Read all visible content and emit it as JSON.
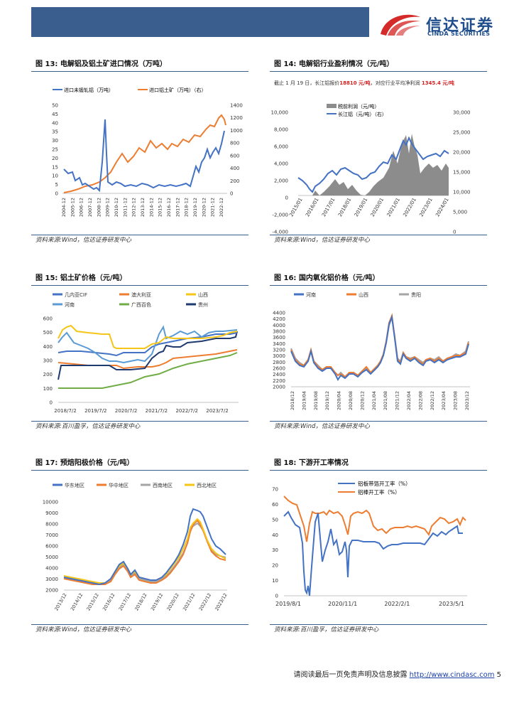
{
  "header": {
    "brand_cn": "信达证券",
    "brand_en": "CINDA SECURITIES",
    "bar_color": "#3a5f8f"
  },
  "figures": {
    "f13": {
      "label": "图 13:",
      "title": "电解铝及铝土矿进口情况（万吨）",
      "source": "资料来源:Wind，信达证券研发中心",
      "chart_data": {
        "type": "line",
        "series": [
          {
            "name": "进口未锻轧铝（万吨）",
            "color": "#4472c4",
            "axis": "left"
          },
          {
            "name": "进口铝土矿（万吨）（右）",
            "color": "#ed7d31",
            "axis": "right"
          }
        ],
        "x_ticks": [
          "2004-12",
          "2005-12",
          "2006-12",
          "2007-12",
          "2008-12",
          "2009-12",
          "2010-12",
          "2011-12",
          "2012-12",
          "2013-12",
          "2014-12",
          "2015-12",
          "2016-12",
          "2017-12",
          "2018-12",
          "2019-12",
          "2020-12",
          "2021-12",
          "2022-12"
        ],
        "y_left": [
          0,
          5,
          10,
          15,
          20,
          25,
          30,
          35,
          40,
          45,
          50
        ],
        "y_right": [
          0,
          200,
          400,
          600,
          800,
          1000,
          1200,
          1400
        ]
      }
    },
    "f14": {
      "label": "图 14:",
      "title": "电解铝行业盈利情况（元/吨）",
      "note_pre": "截止 1 月 19 日，长江铝报价",
      "note_price": "18810 元/吨",
      "note_mid": "，对应行业平均净利润",
      "note_profit": "1345.4 元/吨",
      "source": "资料来源:Wind，信达证券研发中心",
      "chart_data": {
        "type": "area+line",
        "series": [
          {
            "name": "税前利润（元/吨）",
            "color": "#8c8c8c",
            "axis": "left"
          },
          {
            "name": "长江铝（元/吨）（右）",
            "color": "#4472c4",
            "axis": "right"
          }
        ],
        "x_ticks": [
          "2015/01",
          "2016/01",
          "2017/01",
          "2018/01",
          "2019/01",
          "2020/01",
          "2021/01",
          "2022/01",
          "2023/01",
          "2024/01"
        ],
        "y_left": [
          "10,000",
          "8,000",
          "6,000",
          "4,000",
          "2,000",
          "0",
          "-2,000",
          "-4,000"
        ],
        "y_right": [
          "30,000",
          "25,000",
          "20,000",
          "15,000",
          "10,000",
          "5,000",
          "0"
        ]
      }
    },
    "f15": {
      "label": "图 15:",
      "title": "铝土矿价格（元/吨）",
      "source": "资料来源:百川盈孚，信达证券研发中心",
      "chart_data": {
        "type": "line",
        "series": [
          {
            "name": "几内亚CIF",
            "color": "#4472c4"
          },
          {
            "name": "澳大利亚",
            "color": "#ed7d31"
          },
          {
            "name": "山西",
            "color": "#f5c518"
          },
          {
            "name": "河南",
            "color": "#5b9bd5"
          },
          {
            "name": "广西百色",
            "color": "#70ad47"
          },
          {
            "name": "贵州",
            "color": "#1f3a6e"
          }
        ],
        "x_ticks": [
          "2018/7/2",
          "2019/7/2",
          "2020/7/2",
          "2021/7/2",
          "2022/7/2",
          "2023/7/2"
        ],
        "y_ticks": [
          "600",
          "500",
          "400",
          "300",
          "200",
          "100",
          "0"
        ]
      }
    },
    "f16": {
      "label": "图 16:",
      "title": "国内氧化铝价格（元/吨）",
      "source": "资料来源:Wind，信达证券研发中心",
      "chart_data": {
        "type": "line",
        "series": [
          {
            "name": "河南",
            "color": "#4472c4"
          },
          {
            "name": "山西",
            "color": "#ed7d31"
          },
          {
            "name": "贵阳",
            "color": "#a5a5a5"
          }
        ],
        "x_ticks": [
          "2018/12",
          "2019/04",
          "2019/08",
          "2019/12",
          "2020/04",
          "2020/08",
          "2020/12",
          "2021/04",
          "2021/08",
          "2021/12",
          "2022/04",
          "2022/08",
          "2022/12",
          "2023/04",
          "2023/08",
          "2023/12"
        ],
        "y_ticks": [
          "4400",
          "4200",
          "4000",
          "3800",
          "3600",
          "3400",
          "3200",
          "3000",
          "2800",
          "2600",
          "2400",
          "2200",
          "2000"
        ]
      }
    },
    "f17": {
      "label": "图 17:",
      "title": "预焙阳极价格（元/吨）",
      "source": "资料来源:Wind，信达证券研发中心",
      "chart_data": {
        "type": "line",
        "series": [
          {
            "name": "华东地区",
            "color": "#4472c4"
          },
          {
            "name": "华中地区",
            "color": "#ed7d31"
          },
          {
            "name": "西南地区",
            "color": "#a5a5a5"
          },
          {
            "name": "西北地区",
            "color": "#f5c518"
          }
        ],
        "x_ticks": [
          "2013/12",
          "2014/12",
          "2015/12",
          "2016/12",
          "2017/12",
          "2018/12",
          "2019/12",
          "2020/12",
          "2021/12",
          "2022/12",
          "2023/12"
        ],
        "y_ticks": [
          "10000",
          "9000",
          "8000",
          "7000",
          "6000",
          "5000",
          "4000",
          "3000",
          "2000"
        ]
      }
    },
    "f18": {
      "label": "图 18:",
      "title": "下游开工率情况",
      "source": "资料来源:百川盈孚，信达证券研发中心",
      "chart_data": {
        "type": "line",
        "series": [
          {
            "name": "铝板带箔开工率（%）",
            "color": "#4472c4"
          },
          {
            "name": "铝棒开工率（%）",
            "color": "#ed7d31"
          }
        ],
        "x_ticks": [
          "2019/8/1",
          "2020/11/1",
          "2022/2/1",
          "2023/5/1"
        ],
        "y_ticks": [
          "70",
          "60",
          "50",
          "40",
          "30",
          "20",
          "10",
          "0"
        ]
      }
    }
  },
  "footer": {
    "text": "请阅读最后一页免责声明及信息披露",
    "link": "http://www.cindasc.com",
    "page": "5"
  }
}
